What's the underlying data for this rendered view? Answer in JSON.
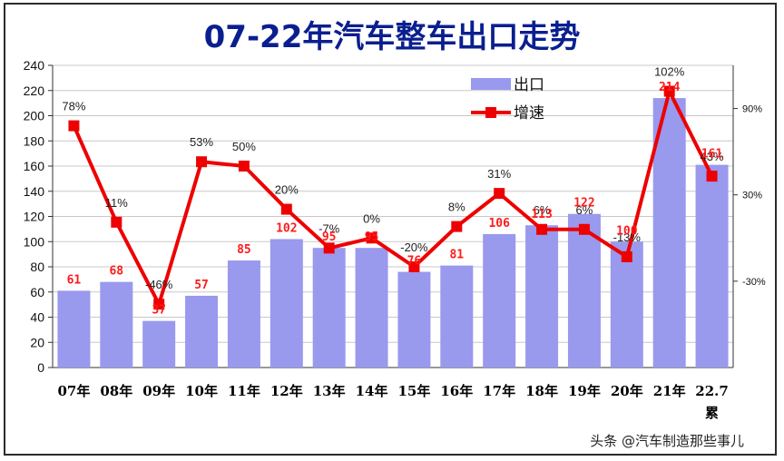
{
  "chart_data": {
    "type": "bar",
    "title": "07-22年汽车整车出口走势",
    "categories": [
      "07年",
      "08年",
      "09年",
      "10年",
      "11年",
      "12年",
      "13年",
      "14年",
      "15年",
      "16年",
      "17年",
      "18年",
      "19年",
      "20年",
      "21年",
      "22.7"
    ],
    "category_extra": "累",
    "ylim": [
      0,
      240
    ],
    "yticks": [
      0,
      20,
      40,
      60,
      80,
      100,
      120,
      140,
      160,
      180,
      200,
      220,
      240
    ],
    "y2lim": [
      -90,
      120
    ],
    "y2ticks": [
      "-30%",
      "30%",
      "90%"
    ],
    "y2tick_values": [
      -30,
      30,
      90
    ],
    "series": [
      {
        "name": "出口",
        "kind": "bar",
        "color": "#9999ee",
        "values": [
          61,
          68,
          37,
          57,
          85,
          102,
          95,
          95,
          76,
          81,
          106,
          113,
          122,
          100,
          214,
          161
        ],
        "labels": [
          "61",
          "68",
          "37",
          "57",
          "85",
          "102",
          "95",
          "95",
          "76",
          "81",
          "106",
          "113",
          "122",
          "100",
          "214",
          "161"
        ]
      },
      {
        "name": "增速",
        "kind": "line",
        "axis": "right",
        "color": "#ee0000",
        "values": [
          78,
          11,
          -46,
          53,
          50,
          20,
          -7,
          0,
          -20,
          8,
          31,
          6,
          6,
          -13,
          102,
          43
        ],
        "labels": [
          "78%",
          "11%",
          "-46%",
          "53%",
          "50%",
          "20%",
          "-7%",
          "0%",
          "-20%",
          "8%",
          "31%",
          "6%",
          "6%",
          "-13%",
          "102%",
          "43%"
        ]
      }
    ],
    "legend_position": "top-right",
    "grid": "y-major"
  },
  "watermark": "头条 @汽车制造那些事儿",
  "colors": {
    "bar": "#9999ee",
    "line": "#ee0000",
    "title": "#0a1f8f"
  }
}
